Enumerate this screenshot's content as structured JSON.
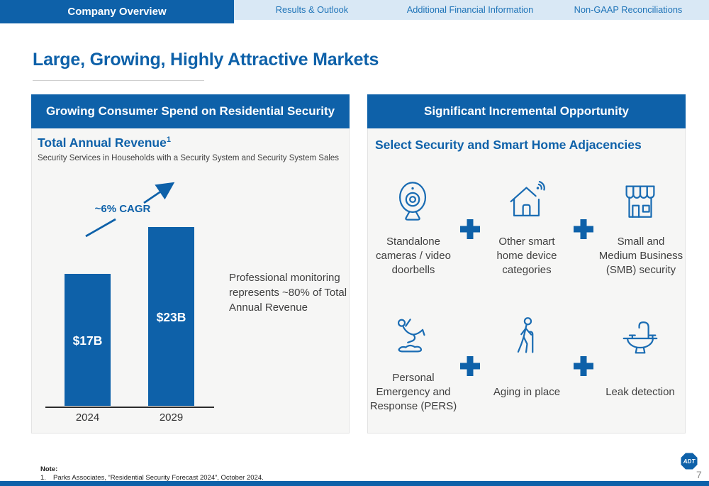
{
  "nav": {
    "active_tab": "Company Overview",
    "tabs": [
      "Results & Outlook",
      "Additional Financial Information",
      "Non-GAAP Reconciliations"
    ]
  },
  "page_title": "Large, Growing, Highly Attractive Markets",
  "left_panel": {
    "header": "Growing Consumer Spend on Residential Security",
    "chart_title": "Total Annual Revenue",
    "chart_title_footnote": "1",
    "chart_subtitle": "Security Services in Households with a Security System and Security System Sales",
    "cagr_label": "~6% CAGR",
    "annotation": "Professional monitoring represents ~80% of Total Annual Revenue"
  },
  "chart_data": {
    "type": "bar",
    "title": "Total Annual Revenue",
    "subtitle": "Security Services in Households with a Security System and Security System Sales",
    "categories": [
      "2024",
      "2029"
    ],
    "values": [
      17,
      23
    ],
    "value_labels": [
      "$17B",
      "$23B"
    ],
    "unit": "USD billions",
    "ylim": [
      0,
      25
    ],
    "grid": false,
    "bar_color": "#0E61A9",
    "annotations": [
      "~6% CAGR",
      "Professional monitoring represents ~80% of Total Annual Revenue"
    ]
  },
  "right_panel": {
    "header": "Significant Incremental Opportunity",
    "subtitle": "Select Security and Smart Home Adjacencies",
    "plus_sign": "+",
    "items": [
      {
        "icon": "webcam-icon",
        "label": "Standalone cameras / video doorbells"
      },
      {
        "icon": "smart-home-wifi-icon",
        "label": "Other smart home device categories"
      },
      {
        "icon": "storefront-icon",
        "label": "Small and Medium Business (SMB) security"
      },
      {
        "icon": "person-falling-icon",
        "label": "Personal Emergency and Response (PERS)"
      },
      {
        "icon": "person-with-cane-icon",
        "label": "Aging in place"
      },
      {
        "icon": "sink-leak-icon",
        "label": "Leak detection"
      }
    ]
  },
  "footer": {
    "note_label": "Note:",
    "note_number": "1.",
    "note_text": "Parks Associates, “Residential Security Forecast 2024”, October 2024.",
    "page_number": "7",
    "logo_text": "ADT"
  },
  "colors": {
    "brand_blue": "#0E61A9",
    "nav_background": "#D9E8F5",
    "nav_text": "#1F74B8",
    "panel_background": "#F6F6F5",
    "icon_blue": "#1A6CB3"
  }
}
